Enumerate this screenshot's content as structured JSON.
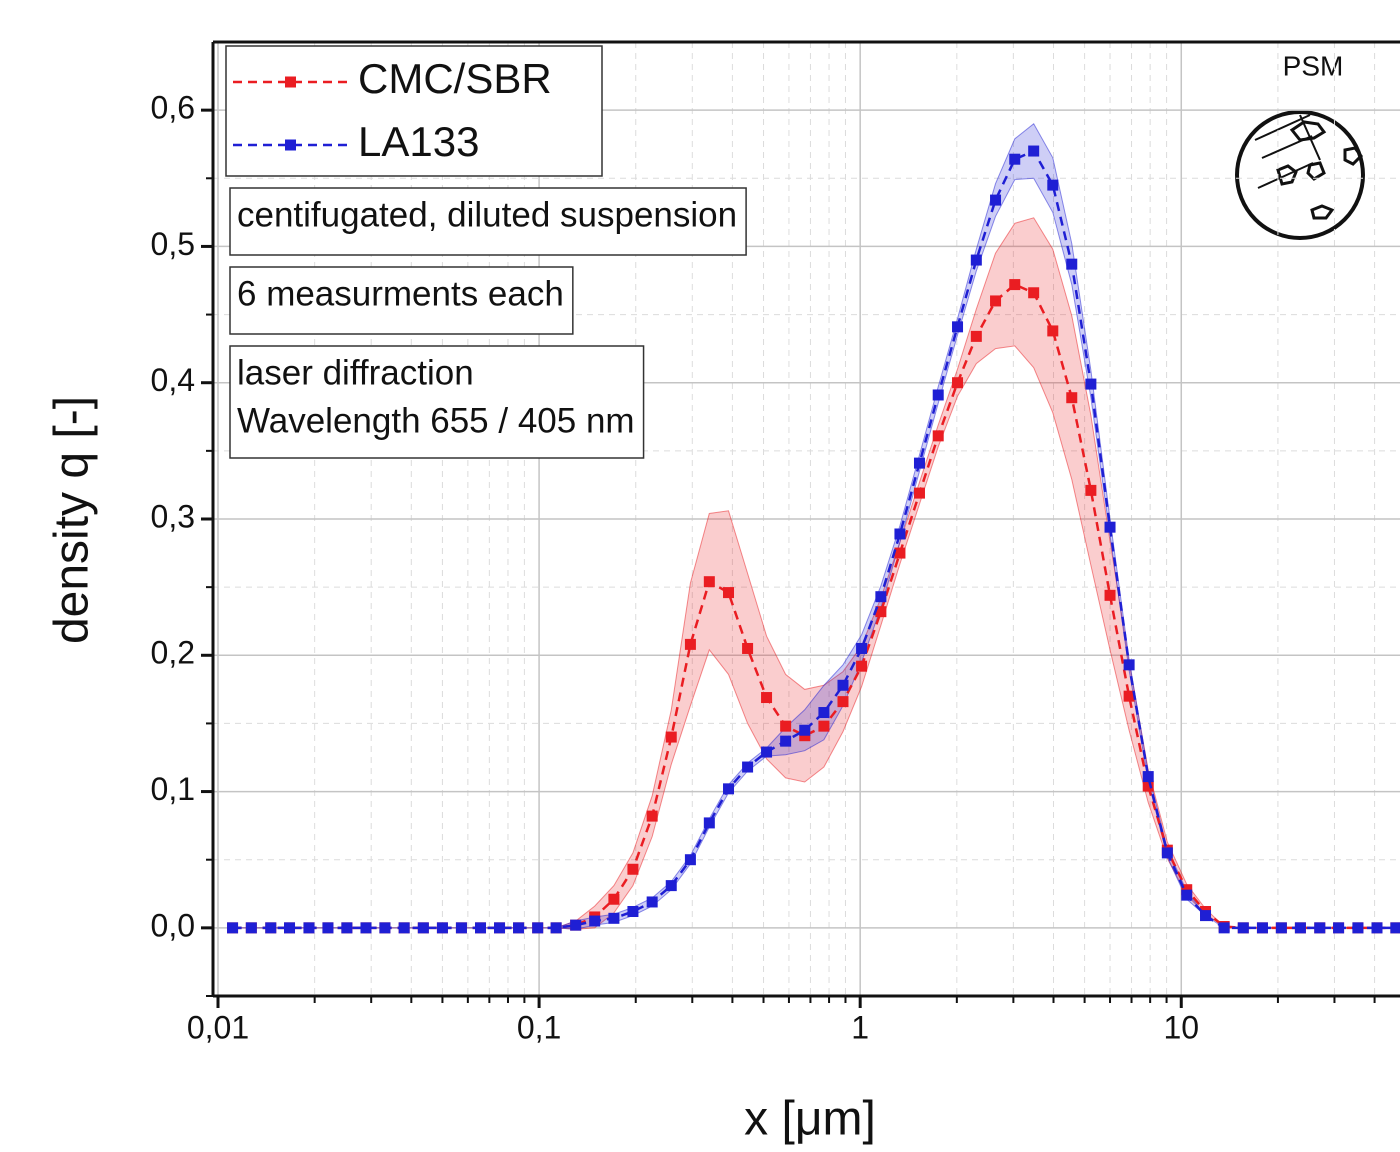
{
  "chart_data": {
    "type": "line",
    "x_label": "x [μm]",
    "y_label": "density q [-]",
    "x": [
      0.0111,
      0.0127,
      0.0146,
      0.0167,
      0.0192,
      0.022,
      0.0252,
      0.0289,
      0.0331,
      0.038,
      0.0436,
      0.05,
      0.0573,
      0.0657,
      0.0753,
      0.0863,
      0.099,
      0.113,
      0.13,
      0.149,
      0.171,
      0.196,
      0.225,
      0.258,
      0.296,
      0.339,
      0.389,
      0.446,
      0.511,
      0.586,
      0.672,
      0.771,
      0.884,
      1.01,
      1.16,
      1.33,
      1.53,
      1.75,
      2.01,
      2.3,
      2.64,
      3.03,
      3.47,
      3.98,
      4.56,
      5.23,
      6.0,
      6.88,
      7.89,
      9.05,
      10.4,
      11.9,
      13.6,
      15.6,
      17.9,
      20.5,
      23.5,
      27.0,
      30.9,
      35.5,
      40.7,
      46.6
    ],
    "series": [
      {
        "name": "CMC/SBR",
        "color": "#ea1d22",
        "values": [
          0,
          0,
          0,
          0,
          0,
          0,
          0,
          0,
          0,
          0,
          0,
          0,
          0,
          0,
          0,
          0,
          0,
          0,
          0.002,
          0.008,
          0.021,
          0.043,
          0.082,
          0.14,
          0.208,
          0.254,
          0.246,
          0.205,
          0.169,
          0.148,
          0.141,
          0.148,
          0.166,
          0.192,
          0.232,
          0.275,
          0.319,
          0.361,
          0.4,
          0.434,
          0.46,
          0.472,
          0.466,
          0.438,
          0.389,
          0.321,
          0.244,
          0.17,
          0.104,
          0.057,
          0.028,
          0.012,
          0.001,
          0,
          0,
          0,
          0,
          0,
          0,
          0,
          0,
          0
        ],
        "errors": [
          0,
          0,
          0,
          0,
          0,
          0,
          0,
          0,
          0,
          0,
          0,
          0,
          0,
          0,
          0,
          0,
          0,
          0,
          0.003,
          0.008,
          0.01,
          0.012,
          0.015,
          0.02,
          0.045,
          0.05,
          0.06,
          0.055,
          0.045,
          0.038,
          0.034,
          0.03,
          0.022,
          0.015,
          0.01,
          0.008,
          0.008,
          0.008,
          0.01,
          0.02,
          0.035,
          0.045,
          0.055,
          0.06,
          0.06,
          0.055,
          0.04,
          0.025,
          0.012,
          0.006,
          0.004,
          0.002,
          0,
          0,
          0,
          0,
          0,
          0,
          0,
          0,
          0,
          0
        ]
      },
      {
        "name": "LA133",
        "color": "#1f1fd4",
        "values": [
          0,
          0,
          0,
          0,
          0,
          0,
          0,
          0,
          0,
          0,
          0,
          0,
          0,
          0,
          0,
          0,
          0,
          0,
          0.002,
          0.005,
          0.007,
          0.012,
          0.019,
          0.031,
          0.05,
          0.077,
          0.102,
          0.118,
          0.129,
          0.137,
          0.145,
          0.158,
          0.178,
          0.205,
          0.243,
          0.289,
          0.341,
          0.391,
          0.441,
          0.49,
          0.534,
          0.564,
          0.57,
          0.545,
          0.487,
          0.399,
          0.294,
          0.193,
          0.111,
          0.055,
          0.024,
          0.009,
          0,
          0,
          0,
          0,
          0,
          0,
          0,
          0,
          0,
          0
        ],
        "errors": [
          0,
          0,
          0,
          0,
          0,
          0,
          0,
          0,
          0,
          0,
          0,
          0,
          0,
          0,
          0,
          0,
          0,
          0,
          0.003,
          0.003,
          0.003,
          0.003,
          0.003,
          0.003,
          0.003,
          0.003,
          0.003,
          0.003,
          0.003,
          0.01,
          0.015,
          0.02,
          0.015,
          0.01,
          0.008,
          0.006,
          0.006,
          0.006,
          0.006,
          0.008,
          0.012,
          0.015,
          0.02,
          0.02,
          0.015,
          0.01,
          0.006,
          0.004,
          0.003,
          0.003,
          0.003,
          0,
          0,
          0,
          0,
          0,
          0,
          0,
          0,
          0,
          0,
          0
        ]
      }
    ],
    "xlim": [
      0.01,
      48
    ],
    "ylim": [
      -0.05,
      0.65
    ],
    "log_x": true,
    "grid": true,
    "xticks": [
      {
        "value": 0.01,
        "label": "0,01"
      },
      {
        "value": 0.1,
        "label": "0,1"
      },
      1,
      10
    ],
    "minor_xticks": [
      0.02,
      0.03,
      0.04,
      0.05,
      0.06,
      0.07,
      0.08,
      0.09,
      0.2,
      0.3,
      0.4,
      0.5,
      0.6,
      0.7,
      0.8,
      0.9,
      2,
      3,
      4,
      5,
      6,
      7,
      8,
      9,
      20,
      30,
      40
    ],
    "yticks": [
      {
        "value": 0,
        "label": "0,0"
      },
      {
        "value": 0.1,
        "label": "0,1"
      },
      {
        "value": 0.2,
        "label": "0,2"
      },
      {
        "value": 0.3,
        "label": "0,3"
      },
      {
        "value": 0.4,
        "label": "0,4"
      },
      {
        "value": 0.5,
        "label": "0,5"
      },
      {
        "value": 0.6,
        "label": "0,6"
      }
    ],
    "minor_yticks": [
      -0.05,
      0.05,
      0.15,
      0.25,
      0.35,
      0.45,
      0.55
    ],
    "legend": "top-left",
    "annotations": [
      [
        "centifugated, diluted suspension"
      ],
      [
        "6 measurments each"
      ],
      [
        "laser diffraction",
        "Wavelength 655 / 405 nm"
      ]
    ],
    "icon_label": "PSM"
  }
}
